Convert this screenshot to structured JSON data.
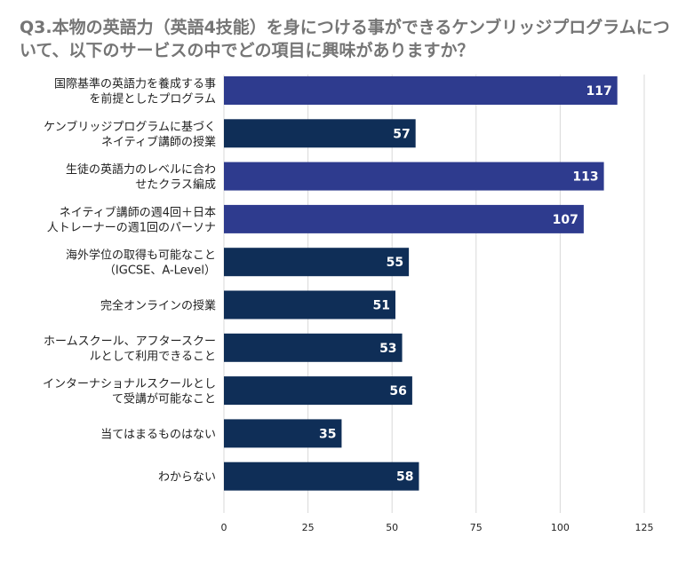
{
  "title": {
    "line1": "Q3.本物の英語力（英語4技能）を身につける事ができるケンブリッジプログラムにつ",
    "line2": "いて、以下のサービスの中でどの項目に興味がありますか？"
  },
  "colors": {
    "bar_light": "#2E3B8E",
    "bar_dark": "#0F2E57",
    "grid": "#D8D8D8",
    "title": "#757575"
  },
  "chart_data": {
    "type": "bar",
    "orientation": "horizontal",
    "title": "Q3.本物の英語力（英語4技能）を身につける事ができるケンブリッジプログラムについて、以下のサービスの中でどの項目に興味がありますか？",
    "categories": [
      [
        "国際基準の英語力を養成する事",
        "を前提としたプログラム"
      ],
      [
        "ケンブリッジプログラムに基づく",
        "ネイティブ講師の授業"
      ],
      [
        "生徒の英語力のレベルに合わ",
        "せたクラス編成"
      ],
      [
        "ネイティブ講師の週4回＋日本",
        "人トレーナーの週1回のパーソナ"
      ],
      [
        "海外学位の取得も可能なこと",
        "（IGCSE、A-Level）"
      ],
      [
        "完全オンラインの授業"
      ],
      [
        "ホームスクール、アフタースクー",
        "ルとして利用できること"
      ],
      [
        "インターナショナルスクールとし",
        "て受講が可能なこと"
      ],
      [
        "当てはまるものはない"
      ],
      [
        "わからない"
      ]
    ],
    "values": [
      117,
      57,
      113,
      107,
      55,
      51,
      53,
      56,
      35,
      58
    ],
    "bar_color_keys": [
      "bar_light",
      "bar_dark",
      "bar_light",
      "bar_light",
      "bar_dark",
      "bar_dark",
      "bar_dark",
      "bar_dark",
      "bar_dark",
      "bar_dark"
    ],
    "xlim": [
      0,
      125
    ],
    "xticks": [
      0,
      25,
      50,
      75,
      100,
      125
    ],
    "grid": true,
    "legend": "none"
  }
}
